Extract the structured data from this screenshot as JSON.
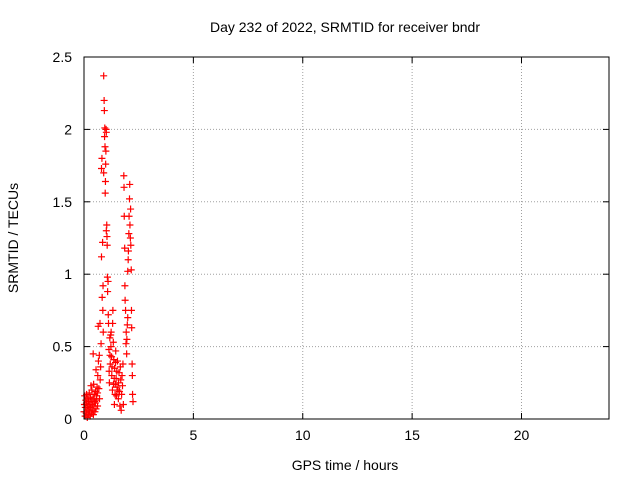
{
  "chart_data": {
    "type": "scatter",
    "title": "Day 232 of 2022, SRMTID for receiver bndr",
    "xlabel": "GPS time / hours",
    "ylabel": "SRMTID / TECUs",
    "xlim": [
      0,
      24
    ],
    "ylim": [
      0,
      2.5
    ],
    "xticks": [
      0,
      5,
      10,
      15,
      20
    ],
    "yticks": [
      0,
      0.5,
      1,
      1.5,
      2,
      2.5
    ],
    "xtick_labels": [
      "0",
      "5",
      "10",
      "15",
      "20"
    ],
    "ytick_labels": [
      "0",
      "0.5",
      "1",
      "1.5",
      "2",
      "2.5"
    ],
    "grid": true,
    "marker": "+",
    "series": [
      {
        "name": "SRMTID",
        "color": "#ff0000",
        "points": [
          [
            0.0,
            0.05
          ],
          [
            0.02,
            0.1
          ],
          [
            0.03,
            0.16
          ],
          [
            0.05,
            0.02
          ],
          [
            0.06,
            0.08
          ],
          [
            0.08,
            0.13
          ],
          [
            0.1,
            0.04
          ],
          [
            0.11,
            0.11
          ],
          [
            0.12,
            0.17
          ],
          [
            0.14,
            0.06
          ],
          [
            0.15,
            0.01
          ],
          [
            0.17,
            0.09
          ],
          [
            0.18,
            0.14
          ],
          [
            0.2,
            0.03
          ],
          [
            0.21,
            0.12
          ],
          [
            0.22,
            0.07
          ],
          [
            0.24,
            0.18
          ],
          [
            0.25,
            0.05
          ],
          [
            0.27,
            0.1
          ],
          [
            0.28,
            0.02
          ],
          [
            0.3,
            0.15
          ],
          [
            0.31,
            0.08
          ],
          [
            0.32,
            0.23
          ],
          [
            0.33,
            0.13
          ],
          [
            0.35,
            0.04
          ],
          [
            0.36,
            0.2
          ],
          [
            0.38,
            0.1
          ],
          [
            0.4,
            0.06
          ],
          [
            0.41,
            0.14
          ],
          [
            0.43,
            0.03
          ],
          [
            0.44,
            0.24
          ],
          [
            0.46,
            0.09
          ],
          [
            0.47,
            0.17
          ],
          [
            0.49,
            0.12
          ],
          [
            0.5,
            0.05
          ],
          [
            0.52,
            0.11
          ],
          [
            0.53,
            0.19
          ],
          [
            0.55,
            0.07
          ],
          [
            0.56,
            0.13
          ],
          [
            0.58,
            0.16
          ],
          [
            0.6,
            0.22
          ],
          [
            0.62,
            0.09
          ],
          [
            0.63,
            0.3
          ],
          [
            0.65,
            0.64
          ],
          [
            0.66,
            0.4
          ],
          [
            0.68,
            0.21
          ],
          [
            0.7,
            0.44
          ],
          [
            0.71,
            0.14
          ],
          [
            0.73,
            0.66
          ],
          [
            0.74,
            0.27
          ],
          [
            0.76,
            0.36
          ],
          [
            0.78,
            0.52
          ],
          [
            0.8,
            1.12
          ],
          [
            0.8,
            1.73
          ],
          [
            0.82,
            1.8
          ],
          [
            0.83,
            0.84
          ],
          [
            0.85,
            1.22
          ],
          [
            0.86,
            0.75
          ],
          [
            0.87,
            0.92
          ],
          [
            0.88,
            0.6
          ],
          [
            0.9,
            2.37
          ],
          [
            0.9,
            1.7
          ],
          [
            0.92,
            2.2
          ],
          [
            0.93,
            2.13
          ],
          [
            0.94,
            1.95
          ],
          [
            0.95,
            2.01
          ],
          [
            0.96,
            1.88
          ],
          [
            0.97,
            1.56
          ],
          [
            0.98,
            1.64
          ],
          [
            0.99,
            1.76
          ],
          [
            1.0,
            1.85
          ],
          [
            1.01,
            2.0
          ],
          [
            1.02,
            1.98
          ],
          [
            1.02,
            1.3
          ],
          [
            1.04,
            1.34
          ],
          [
            1.05,
            1.26
          ],
          [
            1.06,
            1.2
          ],
          [
            1.07,
            0.98
          ],
          [
            1.08,
            0.88
          ],
          [
            1.1,
            0.95
          ],
          [
            1.11,
            0.72
          ],
          [
            1.12,
            0.66
          ],
          [
            1.14,
            0.48
          ],
          [
            1.15,
            0.33
          ],
          [
            1.16,
            0.25
          ],
          [
            1.18,
            0.56
          ],
          [
            1.19,
            0.44
          ],
          [
            1.2,
            0.38
          ],
          [
            1.22,
            0.58
          ],
          [
            1.23,
            0.5
          ],
          [
            1.24,
            0.6
          ],
          [
            1.26,
            0.43
          ],
          [
            1.27,
            0.3
          ],
          [
            1.28,
            0.36
          ],
          [
            1.3,
            0.2
          ],
          [
            1.31,
            0.66
          ],
          [
            1.32,
            0.75
          ],
          [
            1.34,
            0.53
          ],
          [
            1.35,
            0.24
          ],
          [
            1.36,
            0.41
          ],
          [
            1.38,
            0.28
          ],
          [
            1.39,
            0.1
          ],
          [
            1.4,
            0.35
          ],
          [
            1.42,
            0.17
          ],
          [
            1.43,
            0.24
          ],
          [
            1.44,
            0.39
          ],
          [
            1.45,
            0.47
          ],
          [
            1.47,
            0.28
          ],
          [
            1.48,
            0.16
          ],
          [
            1.5,
            0.33
          ],
          [
            1.51,
            0.22
          ],
          [
            1.53,
            0.4
          ],
          [
            1.55,
            0.2
          ],
          [
            1.57,
            0.14
          ],
          [
            1.58,
            0.25
          ],
          [
            1.6,
            0.32
          ],
          [
            1.62,
            0.19
          ],
          [
            1.64,
            0.09
          ],
          [
            1.66,
            0.36
          ],
          [
            1.68,
            0.27
          ],
          [
            1.7,
            0.06
          ],
          [
            1.72,
            0.17
          ],
          [
            1.74,
            0.3
          ],
          [
            1.76,
            0.23
          ],
          [
            1.78,
            0.38
          ],
          [
            1.8,
            0.1
          ],
          [
            1.82,
            1.68
          ],
          [
            1.83,
            1.6
          ],
          [
            1.84,
            1.4
          ],
          [
            1.86,
            1.18
          ],
          [
            1.87,
            0.92
          ],
          [
            1.88,
            0.82
          ],
          [
            1.9,
            0.75
          ],
          [
            1.92,
            0.52
          ],
          [
            1.93,
            0.6
          ],
          [
            1.95,
            0.45
          ],
          [
            1.96,
            0.55
          ],
          [
            1.98,
            0.65
          ],
          [
            2.0,
            0.7
          ],
          [
            2.0,
            1.02
          ],
          [
            2.02,
            1.1
          ],
          [
            2.03,
            1.16
          ],
          [
            2.05,
            1.28
          ],
          [
            2.06,
            1.4
          ],
          [
            2.08,
            1.52
          ],
          [
            2.09,
            1.62
          ],
          [
            2.1,
            1.34
          ],
          [
            2.12,
            1.25
          ],
          [
            2.13,
            1.45
          ],
          [
            2.14,
            1.2
          ],
          [
            2.16,
            1.03
          ],
          [
            2.17,
            0.75
          ],
          [
            2.18,
            0.63
          ],
          [
            2.2,
            0.38
          ],
          [
            2.21,
            0.3
          ],
          [
            2.22,
            0.17
          ],
          [
            2.24,
            0.12
          ],
          [
            0.42,
            0.45
          ],
          [
            0.55,
            0.34
          ],
          [
            0.62,
            0.18
          ]
        ]
      }
    ]
  }
}
